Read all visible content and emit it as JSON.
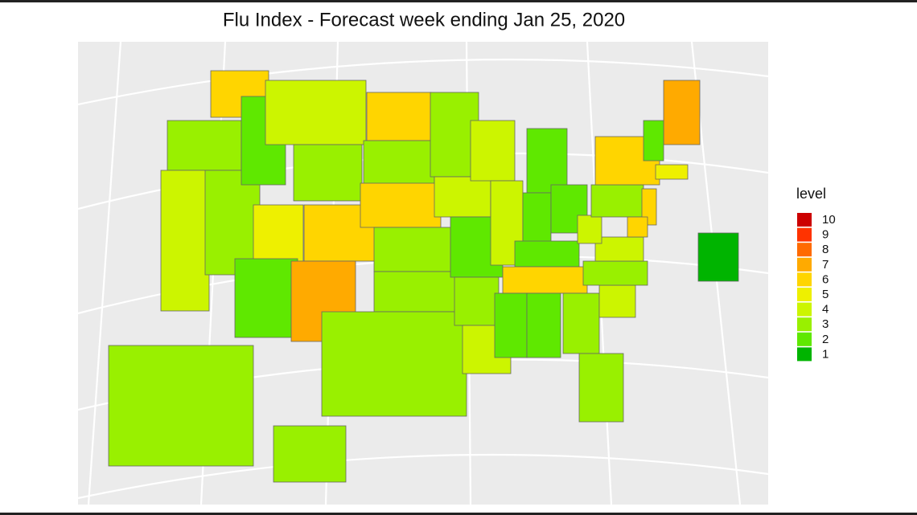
{
  "title": "Flu Index - Forecast week ending Jan 25, 2020",
  "legend": {
    "title": "level",
    "levels": [
      10,
      9,
      8,
      7,
      6,
      5,
      4,
      3,
      2,
      1
    ],
    "colors": [
      "#cc0000",
      "#ff3300",
      "#ff6a00",
      "#ffaa00",
      "#ffd500",
      "#eef000",
      "#ccf500",
      "#99f000",
      "#5fe800",
      "#00b400"
    ]
  },
  "regions": {
    "values": [
      6,
      3,
      4,
      3,
      2,
      4,
      3,
      5,
      2,
      6,
      7,
      6,
      3,
      6,
      3,
      3,
      3,
      3,
      4,
      2,
      3,
      4,
      4,
      4,
      2,
      2,
      2,
      2,
      6,
      2,
      2,
      3,
      3,
      4,
      3,
      4,
      4,
      3,
      6,
      7,
      2,
      6,
      5,
      6,
      3,
      3,
      1
    ]
  }
}
